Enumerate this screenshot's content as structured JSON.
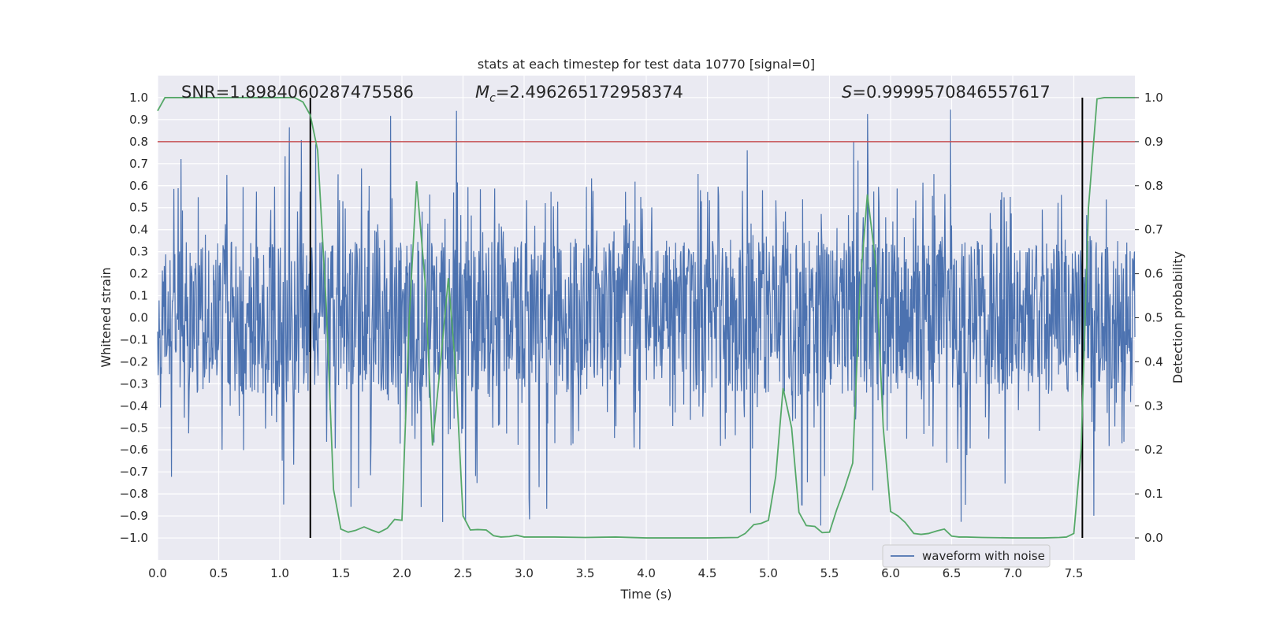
{
  "chart_data": {
    "type": "line",
    "title": "stats at each timestep for test data 10770 [signal=0]",
    "xlabel": "Time (s)",
    "ylabel": "Whitened strain",
    "y2label": "Detection probability",
    "xlim": [
      0,
      8
    ],
    "ylim": [
      -1.1,
      1.1
    ],
    "y2lim": [
      -0.05,
      1.05
    ],
    "xticks": [
      "0.0",
      "0.5",
      "1.0",
      "1.5",
      "2.0",
      "2.5",
      "3.0",
      "3.5",
      "4.0",
      "4.5",
      "5.0",
      "5.5",
      "6.0",
      "6.5",
      "7.0",
      "7.5"
    ],
    "xtick_values": [
      0,
      0.5,
      1,
      1.5,
      2,
      2.5,
      3,
      3.5,
      4,
      4.5,
      5,
      5.5,
      6,
      6.5,
      7,
      7.5
    ],
    "yticks": [
      "1.0",
      "0.9",
      "0.8",
      "0.7",
      "0.6",
      "0.5",
      "0.4",
      "0.3",
      "0.2",
      "0.1",
      "0.0",
      "−0.1",
      "−0.2",
      "−0.3",
      "−0.4",
      "−0.5",
      "−0.6",
      "−0.7",
      "−0.8",
      "−0.9",
      "−1.0"
    ],
    "ytick_values": [
      1,
      0.9,
      0.8,
      0.7,
      0.6,
      0.5,
      0.4,
      0.3,
      0.2,
      0.1,
      0,
      -0.1,
      -0.2,
      -0.3,
      -0.4,
      -0.5,
      -0.6,
      -0.7,
      -0.8,
      -0.9,
      -1.0
    ],
    "y2ticks": [
      "1.0",
      "0.9",
      "0.8",
      "0.7",
      "0.6",
      "0.5",
      "0.4",
      "0.3",
      "0.2",
      "0.1",
      "0.0"
    ],
    "y2tick_values": [
      1,
      0.9,
      0.8,
      0.7,
      0.6,
      0.5,
      0.4,
      0.3,
      0.2,
      0.1,
      0
    ],
    "annotations": {
      "snr": "SNR=1.8984060287475586",
      "mc_prefix": "M",
      "mc_sub": "c",
      "mc_value": "=2.496265172958374",
      "s_prefix": "S",
      "s_value": "=0.9999570846557617"
    },
    "threshold_line": {
      "y2": 0.9,
      "color": "#c44e52"
    },
    "vertical_lines": [
      1.25,
      7.57
    ],
    "waveform": {
      "name": "waveform with noise",
      "color": "#4c72b0",
      "n_samples": 2048,
      "typical_range": [
        -0.35,
        0.4
      ],
      "peak_max": 1.0,
      "peak_min": -1.0
    },
    "probability": {
      "color": "#55a868",
      "x": [
        0.0,
        0.06,
        0.12,
        0.19,
        0.25,
        0.31,
        0.38,
        0.44,
        0.5,
        0.56,
        0.62,
        0.69,
        0.75,
        0.81,
        0.88,
        0.94,
        1.0,
        1.06,
        1.12,
        1.19,
        1.25,
        1.31,
        1.38,
        1.44,
        1.5,
        1.56,
        1.62,
        1.69,
        1.75,
        1.81,
        1.88,
        1.94,
        2.0,
        2.06,
        2.12,
        2.19,
        2.25,
        2.31,
        2.38,
        2.44,
        2.5,
        2.56,
        2.62,
        2.69,
        2.75,
        2.81,
        2.88,
        2.94,
        3.0,
        3.25,
        3.5,
        3.75,
        4.0,
        4.25,
        4.5,
        4.75,
        4.81,
        4.88,
        4.94,
        5.0,
        5.06,
        5.12,
        5.19,
        5.25,
        5.31,
        5.38,
        5.44,
        5.5,
        5.56,
        5.62,
        5.69,
        5.75,
        5.81,
        5.88,
        5.94,
        6.0,
        6.06,
        6.12,
        6.19,
        6.25,
        6.31,
        6.38,
        6.44,
        6.5,
        6.56,
        6.62,
        6.75,
        7.0,
        7.25,
        7.38,
        7.44,
        7.5,
        7.56,
        7.62,
        7.69,
        7.75,
        7.81,
        7.88,
        7.94,
        8.0
      ],
      "y": [
        0.97,
        1.0,
        1.0,
        1.0,
        1.0,
        1.0,
        1.0,
        1.0,
        1.0,
        1.0,
        1.0,
        1.0,
        1.0,
        1.0,
        1.0,
        1.0,
        1.0,
        1.0,
        1.0,
        0.99,
        0.96,
        0.88,
        0.53,
        0.11,
        0.02,
        0.013,
        0.017,
        0.025,
        0.018,
        0.012,
        0.022,
        0.042,
        0.04,
        0.5,
        0.81,
        0.58,
        0.21,
        0.38,
        0.59,
        0.38,
        0.05,
        0.018,
        0.019,
        0.018,
        0.005,
        0.002,
        0.003,
        0.006,
        0.002,
        0.002,
        0.001,
        0.002,
        0.0,
        0.0,
        0.0,
        0.001,
        0.01,
        0.03,
        0.033,
        0.04,
        0.14,
        0.34,
        0.25,
        0.058,
        0.028,
        0.026,
        0.012,
        0.013,
        0.065,
        0.11,
        0.17,
        0.57,
        0.78,
        0.62,
        0.25,
        0.06,
        0.05,
        0.035,
        0.01,
        0.008,
        0.01,
        0.016,
        0.02,
        0.004,
        0.002,
        0.002,
        0.001,
        0.0,
        0.0,
        0.001,
        0.002,
        0.01,
        0.2,
        0.75,
        0.997,
        1.0,
        1.0,
        1.0,
        1.0,
        1.0
      ]
    },
    "legend": {
      "label": "waveform with noise",
      "placement": "lower-right"
    },
    "grid": true
  }
}
